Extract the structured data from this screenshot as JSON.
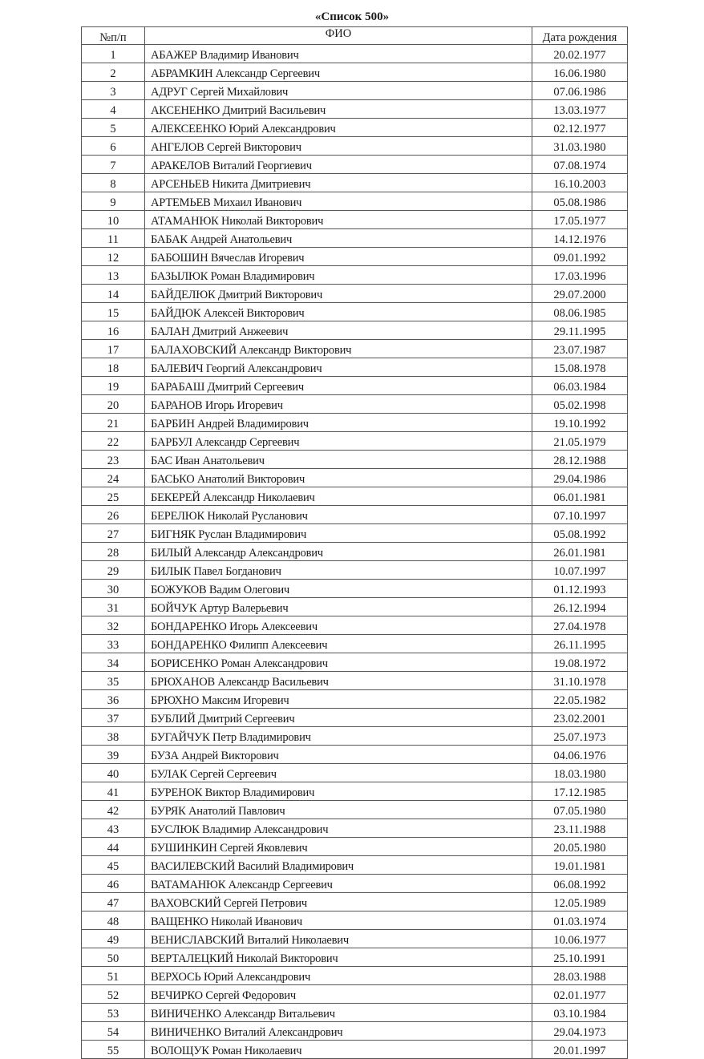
{
  "title": "«Список 500»",
  "columns": {
    "num": "№п/п",
    "name": "ФИО",
    "dob": "Дата рождения"
  },
  "rows": [
    {
      "num": "1",
      "name": "АБАЖЕР Владимир Иванович",
      "dob": "20.02.1977"
    },
    {
      "num": "2",
      "name": "АБРАМКИН Александр Сергеевич",
      "dob": "16.06.1980"
    },
    {
      "num": "3",
      "name": "АДРУГ Сергей Михайлович",
      "dob": "07.06.1986"
    },
    {
      "num": "4",
      "name": "АКСЕНЕНКО Дмитрий Васильевич",
      "dob": "13.03.1977"
    },
    {
      "num": "5",
      "name": "АЛЕКСЕЕНКО Юрий Александрович",
      "dob": "02.12.1977"
    },
    {
      "num": "6",
      "name": "АНГЕЛОВ Сергей Викторович",
      "dob": "31.03.1980"
    },
    {
      "num": "7",
      "name": "АРАКЕЛОВ Виталий Георгиевич",
      "dob": "07.08.1974"
    },
    {
      "num": "8",
      "name": "АРСЕНЬЕВ Никита Дмитриевич",
      "dob": "16.10.2003"
    },
    {
      "num": "9",
      "name": "АРТЕМЬЕВ Михаил Иванович",
      "dob": "05.08.1986"
    },
    {
      "num": "10",
      "name": "АТАМАНЮК Николай Викторович",
      "dob": "17.05.1977"
    },
    {
      "num": "11",
      "name": "БАБАК Андрей Анатольевич",
      "dob": "14.12.1976"
    },
    {
      "num": "12",
      "name": "БАБОШИН Вячеслав Игоревич",
      "dob": "09.01.1992"
    },
    {
      "num": "13",
      "name": "БАЗЫЛЮК Роман Владимирович",
      "dob": "17.03.1996"
    },
    {
      "num": "14",
      "name": "БАЙДЕЛЮК Дмитрий Викторович",
      "dob": "29.07.2000"
    },
    {
      "num": "15",
      "name": "БАЙДЮК Алексей Викторович",
      "dob": "08.06.1985"
    },
    {
      "num": "16",
      "name": "БАЛАН Дмитрий Анжеевич",
      "dob": "29.11.1995"
    },
    {
      "num": "17",
      "name": "БАЛАХОВСКИЙ Александр Викторович",
      "dob": "23.07.1987"
    },
    {
      "num": "18",
      "name": "БАЛЕВИЧ Георгий Александрович",
      "dob": "15.08.1978"
    },
    {
      "num": "19",
      "name": "БАРАБАШ Дмитрий Сергеевич",
      "dob": "06.03.1984"
    },
    {
      "num": "20",
      "name": "БАРАНОВ Игорь Игоревич",
      "dob": "05.02.1998"
    },
    {
      "num": "21",
      "name": "БАРБИН Андрей Владимирович",
      "dob": "19.10.1992"
    },
    {
      "num": "22",
      "name": "БАРБУЛ Александр Сергеевич",
      "dob": "21.05.1979"
    },
    {
      "num": "23",
      "name": "БАС Иван Анатольевич",
      "dob": "28.12.1988"
    },
    {
      "num": "24",
      "name": "БАСЬКО Анатолий Викторович",
      "dob": "29.04.1986"
    },
    {
      "num": "25",
      "name": "БЕКЕРЕЙ Александр Николаевич",
      "dob": "06.01.1981"
    },
    {
      "num": "26",
      "name": "БЕРЕЛЮК Николай Русланович",
      "dob": "07.10.1997"
    },
    {
      "num": "27",
      "name": "БИГНЯК Руслан Владимирович",
      "dob": "05.08.1992"
    },
    {
      "num": "28",
      "name": "БИЛЫЙ Александр Александрович",
      "dob": "26.01.1981"
    },
    {
      "num": "29",
      "name": "БИЛЫК Павел Богданович",
      "dob": "10.07.1997"
    },
    {
      "num": "30",
      "name": "БОЖУКОВ Вадим Олегович",
      "dob": "01.12.1993"
    },
    {
      "num": "31",
      "name": "БОЙЧУК Артур Валерьевич",
      "dob": "26.12.1994"
    },
    {
      "num": "32",
      "name": "БОНДАРЕНКО Игорь Алексеевич",
      "dob": "27.04.1978"
    },
    {
      "num": "33",
      "name": "БОНДАРЕНКО Филипп Алексеевич",
      "dob": "26.11.1995"
    },
    {
      "num": "34",
      "name": "БОРИСЕНКО Роман Александрович",
      "dob": "19.08.1972"
    },
    {
      "num": "35",
      "name": "БРЮХАНОВ Александр Васильевич",
      "dob": "31.10.1978"
    },
    {
      "num": "36",
      "name": "БРЮХНО Максим Игоревич",
      "dob": "22.05.1982"
    },
    {
      "num": "37",
      "name": "БУБЛИЙ Дмитрий Сергеевич",
      "dob": "23.02.2001"
    },
    {
      "num": "38",
      "name": "БУГАЙЧУК Петр Владимирович",
      "dob": "25.07.1973"
    },
    {
      "num": "39",
      "name": "БУЗА Андрей Викторович",
      "dob": "04.06.1976"
    },
    {
      "num": "40",
      "name": "БУЛАК Сергей Сергеевич",
      "dob": "18.03.1980"
    },
    {
      "num": "41",
      "name": "БУРЕНОК Виктор Владимирович",
      "dob": "17.12.1985"
    },
    {
      "num": "42",
      "name": "БУРЯК Анатолий Павлович",
      "dob": "07.05.1980"
    },
    {
      "num": "43",
      "name": "БУСЛЮК Владимир Александрович",
      "dob": "23.11.1988"
    },
    {
      "num": "44",
      "name": "БУШИНКИН Сергей Яковлевич",
      "dob": "20.05.1980"
    },
    {
      "num": "45",
      "name": "ВАСИЛЕВСКИЙ Василий Владимирович",
      "dob": "19.01.1981"
    },
    {
      "num": "46",
      "name": "ВАТАМАНЮК Александр Сергеевич",
      "dob": "06.08.1992"
    },
    {
      "num": "47",
      "name": "ВАХОВСКИЙ Сергей Петрович",
      "dob": "12.05.1989"
    },
    {
      "num": "48",
      "name": "ВАЩЕНКО Николай Иванович",
      "dob": "01.03.1974"
    },
    {
      "num": "49",
      "name": "ВЕНИСЛАВСКИЙ Виталий Николаевич",
      "dob": "10.06.1977"
    },
    {
      "num": "50",
      "name": "ВЕРТАЛЕЦКИЙ Николай Викторович",
      "dob": "25.10.1991"
    },
    {
      "num": "51",
      "name": "ВЕРХОСЬ Юрий Александрович",
      "dob": "28.03.1988"
    },
    {
      "num": "52",
      "name": "ВЕЧИРКО Сергей Федорович",
      "dob": "02.01.1977"
    },
    {
      "num": "53",
      "name": "ВИНИЧЕНКО Александр Витальевич",
      "dob": "03.10.1984"
    },
    {
      "num": "54",
      "name": "ВИНИЧЕНКО Виталий Александрович",
      "dob": "29.04.1973"
    },
    {
      "num": "55",
      "name": "ВОЛОЩУК Роман Николаевич",
      "dob": "20.01.1997"
    }
  ]
}
